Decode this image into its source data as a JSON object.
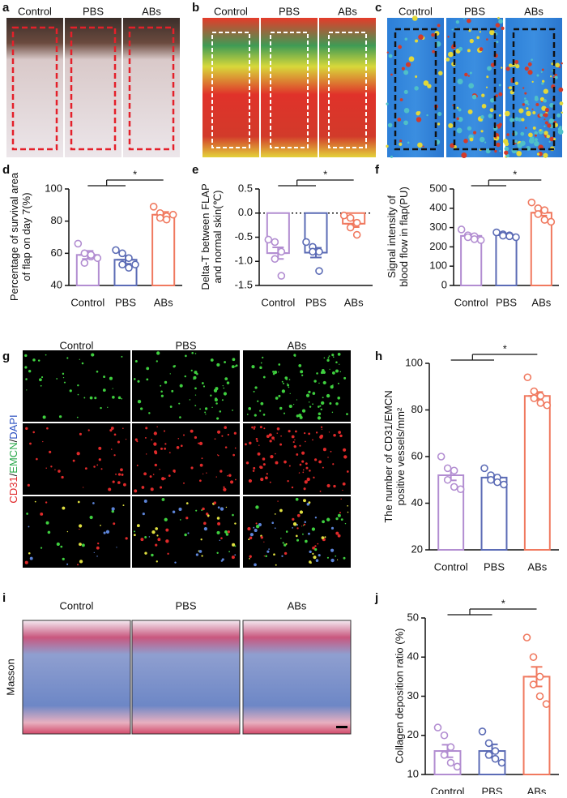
{
  "panels": {
    "a": {
      "letter": "a",
      "columns": [
        "Control",
        "PBS",
        "ABs"
      ]
    },
    "b": {
      "letter": "b",
      "columns": [
        "Control",
        "PBS",
        "ABs"
      ]
    },
    "c": {
      "letter": "c",
      "columns": [
        "Control",
        "PBS",
        "ABs"
      ]
    },
    "g": {
      "letter": "g",
      "columns": [
        "Control",
        "PBS",
        "ABs"
      ],
      "stain": [
        "CD31",
        "/",
        "EMCN",
        "/",
        "DAPI"
      ]
    },
    "i": {
      "letter": "i",
      "columns": [
        "Control",
        "PBS",
        "ABs"
      ],
      "stain": "Masson"
    }
  },
  "chart_data": [
    {
      "letter": "d",
      "type": "bar",
      "ylabel": [
        "Percentage of survival area",
        "of flap on day 7(%)"
      ],
      "categories": [
        "Control",
        "PBS",
        "ABs"
      ],
      "colors": [
        "#b28dd1",
        "#5b6bb5",
        "#f0795f"
      ],
      "values": [
        59,
        56,
        84
      ],
      "errors": [
        2.5,
        2.5,
        1.7
      ],
      "points": [
        [
          66,
          60,
          58,
          54,
          59,
          57
        ],
        [
          62,
          60,
          57,
          53,
          51,
          53
        ],
        [
          89,
          85,
          83,
          82,
          81,
          84
        ]
      ],
      "ylim": [
        40,
        100
      ],
      "yticks": [
        40,
        60,
        80,
        100
      ],
      "significance": "*"
    },
    {
      "letter": "e",
      "type": "bar",
      "ylabel": [
        "Delta-T between FLAP",
        "and normal skin(℃)"
      ],
      "categories": [
        "Control",
        "PBS",
        "ABs"
      ],
      "colors": [
        "#b28dd1",
        "#5b6bb5",
        "#f0795f"
      ],
      "values": [
        -0.83,
        -0.82,
        -0.22
      ],
      "errors": [
        0.12,
        0.1,
        0.07
      ],
      "points": [
        [
          -0.55,
          -0.6,
          -0.8,
          -0.95,
          -1.3
        ],
        [
          -0.6,
          -0.7,
          -0.8,
          -0.8,
          -1.2
        ],
        [
          -0.05,
          -0.1,
          -0.2,
          -0.3,
          -0.45
        ]
      ],
      "ylim": [
        -1.5,
        0.5
      ],
      "yticks": [
        -1.5,
        {
          "value": -1,
          "label": "-1.0"
        },
        -0.5,
        {
          "value": 0,
          "label": "0.0"
        },
        0.5
      ],
      "reference_line": 0,
      "significance": "*"
    },
    {
      "letter": "f",
      "type": "bar",
      "ylabel": [
        "Signal intensity of",
        "blood flow in flap(PU)"
      ],
      "categories": [
        "Control",
        "PBS",
        "ABs"
      ],
      "colors": [
        "#b28dd1",
        "#5b6bb5",
        "#f0795f"
      ],
      "values": [
        257,
        261,
        377
      ],
      "errors": [
        9,
        4,
        15
      ],
      "points": [
        [
          290,
          260,
          255,
          250,
          240,
          235
        ],
        [
          275,
          265,
          260,
          258,
          255,
          250
        ],
        [
          430,
          400,
          390,
          370,
          340,
          330
        ]
      ],
      "ylim": [
        0,
        500
      ],
      "yticks": [
        0,
        100,
        200,
        300,
        400,
        500
      ],
      "significance": "*"
    },
    {
      "letter": "h",
      "type": "bar",
      "ylabel": [
        "The number of CD31/EMCN",
        "positive vessels/mm²"
      ],
      "categories": [
        "Control",
        "PBS",
        "ABs"
      ],
      "colors": [
        "#b28dd1",
        "#5b6bb5",
        "#f0795f"
      ],
      "values": [
        52,
        51,
        86
      ],
      "errors": [
        2.2,
        1.1,
        1.7
      ],
      "points": [
        [
          60,
          55,
          54,
          50,
          47,
          46
        ],
        [
          55,
          52,
          51,
          50,
          49,
          48
        ],
        [
          94,
          88,
          86,
          85,
          83,
          82
        ]
      ],
      "ylim": [
        20,
        100
      ],
      "yticks": [
        20,
        40,
        60,
        80,
        100
      ],
      "significance": "*"
    },
    {
      "letter": "j",
      "type": "bar",
      "ylabel": [
        "Collagen deposition ratio (%)"
      ],
      "categories": [
        "Control",
        "PBS",
        "ABs"
      ],
      "colors": [
        "#b28dd1",
        "#5b6bb5",
        "#f0795f"
      ],
      "values": [
        16,
        16,
        35
      ],
      "errors": [
        1.6,
        1.7,
        2.5
      ],
      "points": [
        [
          22,
          20,
          17,
          15,
          13,
          12
        ],
        [
          21,
          18,
          16,
          15,
          14,
          13
        ],
        [
          45,
          40,
          35,
          33,
          30,
          28
        ]
      ],
      "ylim": [
        10,
        50
      ],
      "yticks": [
        10,
        20,
        30,
        40,
        50
      ],
      "significance": "*"
    }
  ]
}
